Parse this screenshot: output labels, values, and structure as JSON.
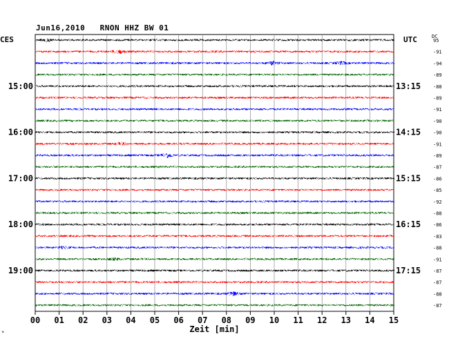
{
  "header": {
    "date": "Jun16,2010",
    "station": "RNON HHZ BW 01"
  },
  "left_zone": "CES",
  "right_zone": "UTC",
  "dc_label": "DC",
  "footnote": "*",
  "chart_data": {
    "type": "line",
    "title": "Jun16,2010   RNON HHZ BW 01",
    "xlabel": "Zeit [min]",
    "xlim": [
      0,
      15
    ],
    "x_ticks": [
      "00",
      "01",
      "02",
      "03",
      "04",
      "05",
      "06",
      "07",
      "08",
      "09",
      "10",
      "11",
      "12",
      "13",
      "14",
      "15"
    ],
    "grid": true,
    "left_hour_labels": [
      {
        "label": "15:00",
        "row": 4
      },
      {
        "label": "16:00",
        "row": 8
      },
      {
        "label": "17:00",
        "row": 12
      },
      {
        "label": "18:00",
        "row": 16
      },
      {
        "label": "19:00",
        "row": 20
      }
    ],
    "right_time_labels": [
      {
        "label": "13:15",
        "row": 4
      },
      {
        "label": "14:15",
        "row": 8
      },
      {
        "label": "15:15",
        "row": 12
      },
      {
        "label": "16:15",
        "row": 16
      },
      {
        "label": "17:15",
        "row": 20
      }
    ],
    "trace_colors": [
      "#000000",
      "#ff0000",
      "#0000ff",
      "#006400"
    ],
    "dc_offsets": [
      "95",
      "-91",
      "-94",
      "-89",
      "-88",
      "-89",
      "-91",
      "-90",
      "-90",
      "-91",
      "-89",
      "-87",
      "-86",
      "-85",
      "-92",
      "-88",
      "-86",
      "-83",
      "-88",
      "-91",
      "-87",
      "-87",
      "-88",
      "-87"
    ],
    "events": [
      {
        "row": 0,
        "minute": 0.5,
        "amp": 1.8
      },
      {
        "row": 1,
        "minute": 3.5,
        "amp": 2.2
      },
      {
        "row": 2,
        "minute": 9.9,
        "amp": 2.0
      },
      {
        "row": 2,
        "minute": 12.8,
        "amp": 1.6
      },
      {
        "row": 9,
        "minute": 3.6,
        "amp": 1.3
      },
      {
        "row": 10,
        "minute": 5.5,
        "amp": 3.0
      },
      {
        "row": 18,
        "minute": 1.2,
        "amp": 1.3
      },
      {
        "row": 19,
        "minute": 3.3,
        "amp": 1.3
      },
      {
        "row": 22,
        "minute": 8.3,
        "amp": 2.2
      }
    ]
  }
}
